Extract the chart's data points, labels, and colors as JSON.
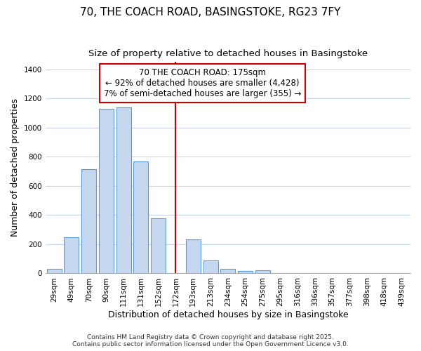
{
  "title1": "70, THE COACH ROAD, BASINGSTOKE, RG23 7FY",
  "title2": "Size of property relative to detached houses in Basingstoke",
  "xlabel": "Distribution of detached houses by size in Basingstoke",
  "ylabel": "Number of detached properties",
  "categories": [
    "29sqm",
    "49sqm",
    "70sqm",
    "90sqm",
    "111sqm",
    "131sqm",
    "152sqm",
    "172sqm",
    "193sqm",
    "213sqm",
    "234sqm",
    "254sqm",
    "275sqm",
    "295sqm",
    "316sqm",
    "336sqm",
    "357sqm",
    "377sqm",
    "398sqm",
    "418sqm",
    "439sqm"
  ],
  "values": [
    30,
    248,
    714,
    1128,
    1138,
    769,
    380,
    0,
    232,
    90,
    30,
    18,
    20,
    0,
    0,
    0,
    0,
    0,
    0,
    0,
    0
  ],
  "bar_color": "#C5D8F0",
  "bar_edge_color": "#5B9BD5",
  "bg_color": "#FFFFFF",
  "plot_bg_color": "#FFFFFF",
  "grid_color": "#C5D8F0",
  "annotation_box_text": "70 THE COACH ROAD: 175sqm\n← 92% of detached houses are smaller (4,428)\n7% of semi-detached houses are larger (355) →",
  "annotation_box_color": "#FFFFFF",
  "annotation_box_edge_color": "#CC0000",
  "vline_x_idx": 7,
  "vline_color": "#CC0000",
  "ylim": [
    0,
    1450
  ],
  "yticks": [
    0,
    200,
    400,
    600,
    800,
    1000,
    1200,
    1400
  ],
  "footnote": "Contains HM Land Registry data © Crown copyright and database right 2025.\nContains public sector information licensed under the Open Government Licence v3.0.",
  "title_fontsize": 11,
  "subtitle_fontsize": 9.5,
  "axis_label_fontsize": 9,
  "tick_fontsize": 7.5,
  "annotation_fontsize": 8.5,
  "footnote_fontsize": 6.5
}
